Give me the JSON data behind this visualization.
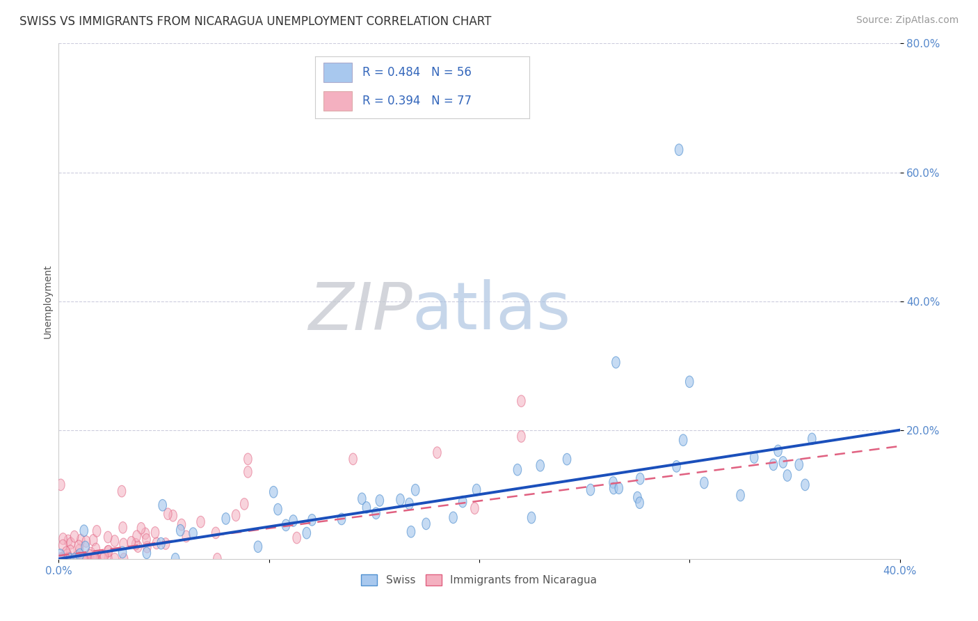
{
  "title": "SWISS VS IMMIGRANTS FROM NICARAGUA UNEMPLOYMENT CORRELATION CHART",
  "source": "Source: ZipAtlas.com",
  "ylabel": "Unemployment",
  "xlim": [
    0.0,
    0.4
  ],
  "ylim": [
    0.0,
    0.8
  ],
  "swiss_color": "#A8C8EE",
  "swiss_edge_color": "#5090D0",
  "nic_color": "#F4B0C0",
  "nic_edge_color": "#E06080",
  "swiss_line_color": "#1A4FBB",
  "nic_line_color": "#E06080",
  "watermark_zip_color": "#C8CDD8",
  "watermark_atlas_color": "#A8C8EE",
  "background_color": "#FFFFFF",
  "grid_color": "#CCCCDD",
  "tick_color": "#5588CC",
  "title_color": "#333333",
  "source_color": "#999999",
  "legend_text_color": "#3366BB",
  "swiss_seed": 12,
  "nic_seed": 77,
  "swiss_R": 0.484,
  "swiss_N": 56,
  "nic_R": 0.394,
  "nic_N": 77,
  "swiss_line_x0": 0.0,
  "swiss_line_x1": 0.4,
  "swiss_line_y0": 0.0,
  "swiss_line_y1": 0.2,
  "nic_line_x0": 0.0,
  "nic_line_x1": 0.4,
  "nic_line_y0": 0.005,
  "nic_line_y1": 0.175,
  "title_fontsize": 12,
  "source_fontsize": 10,
  "tick_fontsize": 11,
  "ylabel_fontsize": 10,
  "legend_fontsize": 12
}
